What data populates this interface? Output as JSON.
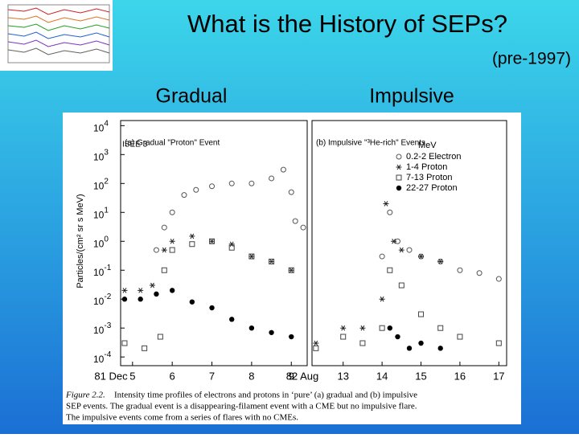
{
  "slide": {
    "title": "What is the History of SEPs?",
    "subtitle": "(pre-1997)",
    "columns": [
      "Gradual",
      "Impulsive"
    ]
  },
  "figure": {
    "instrument": "ISEE 3",
    "ylabel": "Particles/(cm² sr s MeV)",
    "legend_title": "MeV",
    "caption_label": "Figure 2.2.",
    "caption": [
      "Intensity time profiles of electrons and protons in ‘pure’ (a) gradual and (b) impulsive",
      "SEP events. The gradual event is a disappearing-filament event with a CME but no impulsive flare.",
      "The impulsive events come from a series of flares with no CMEs."
    ]
  },
  "chart_data": [
    {
      "type": "scatter",
      "title": "(a) Gradual \"Proton\" Event",
      "x_prefix": "81 Dec",
      "log_y": true,
      "xlim": [
        4.7,
        9.4
      ],
      "xticks": [
        5,
        6,
        7,
        8,
        9
      ],
      "ylim": [
        5e-05,
        15000
      ],
      "yticks": [
        {
          "value": 0.0001,
          "label": "10",
          "exponent": "-4"
        },
        {
          "value": 0.001,
          "label": "10",
          "exponent": "-3"
        },
        {
          "value": 0.01,
          "label": "10",
          "exponent": "-2"
        },
        {
          "value": 0.1,
          "label": "10",
          "exponent": "-1"
        },
        {
          "value": 1,
          "label": "10",
          "exponent": "0"
        },
        {
          "value": 10,
          "label": "10",
          "exponent": "1"
        },
        {
          "value": 100,
          "label": "10",
          "exponent": "2"
        },
        {
          "value": 1000,
          "label": "10",
          "exponent": "3"
        },
        {
          "value": 10000,
          "label": "10",
          "exponent": "4"
        }
      ],
      "series": [
        {
          "marker": "open-circle",
          "color": "#555555",
          "x": [
            5.6,
            5.8,
            6.0,
            6.3,
            6.6,
            7.0,
            7.5,
            8.0,
            8.5,
            8.8,
            9.0,
            9.1,
            9.3
          ],
          "values": [
            0.5,
            3,
            10,
            40,
            60,
            80,
            100,
            100,
            150,
            300,
            50,
            5,
            3
          ]
        },
        {
          "marker": "asterisk",
          "color": "#222222",
          "x": [
            4.8,
            5.2,
            5.5,
            5.8,
            6.0,
            6.5,
            7.0,
            7.5,
            8.0,
            8.5,
            9.0
          ],
          "values": [
            0.02,
            0.02,
            0.03,
            0.5,
            1,
            1.5,
            1,
            0.8,
            0.3,
            0.2,
            0.1
          ]
        },
        {
          "marker": "open-square",
          "color": "#444444",
          "x": [
            4.8,
            5.3,
            5.7,
            5.8,
            6.0,
            6.5,
            7.0,
            7.5,
            8.0,
            8.5,
            9.0
          ],
          "values": [
            0.0003,
            0.0002,
            0.0005,
            0.1,
            0.5,
            0.8,
            1,
            0.6,
            0.3,
            0.2,
            0.1
          ]
        },
        {
          "marker": "filled-circle",
          "color": "#000000",
          "x": [
            4.8,
            5.2,
            5.6,
            6.0,
            6.5,
            7.0,
            7.5,
            8.0,
            8.5,
            9.0
          ],
          "values": [
            0.01,
            0.01,
            0.015,
            0.02,
            0.008,
            0.005,
            0.002,
            0.001,
            0.0007,
            0.0005
          ]
        }
      ]
    },
    {
      "type": "scatter",
      "title": "(b) Impulsive \"³He-rich\" Events",
      "x_prefix": "82 Aug",
      "log_y": true,
      "xlim": [
        12.2,
        17.2
      ],
      "xticks": [
        13,
        14,
        15,
        16,
        17
      ],
      "ylim": [
        5e-05,
        15000
      ],
      "series": [
        {
          "name": "0.2-2 Electron",
          "marker": "open-circle",
          "color": "#555555",
          "x": [
            14.0,
            14.2,
            14.4,
            14.7,
            15.0,
            15.5,
            16.0,
            16.5,
            17.0
          ],
          "values": [
            0.3,
            10,
            1,
            0.5,
            0.3,
            0.2,
            0.1,
            0.08,
            0.05
          ]
        },
        {
          "name": "1-4 Proton",
          "marker": "asterisk",
          "color": "#222222",
          "x": [
            12.3,
            13.0,
            13.5,
            14.0,
            14.1,
            14.3,
            14.5,
            15.0,
            15.5
          ],
          "values": [
            0.0003,
            0.001,
            0.001,
            0.01,
            20,
            1,
            0.5,
            0.3,
            0.2
          ]
        },
        {
          "name": "7-13 Proton",
          "marker": "open-square",
          "color": "#444444",
          "x": [
            12.3,
            13.0,
            13.5,
            14.0,
            14.2,
            14.5,
            15.0,
            15.5,
            16.0,
            17.0
          ],
          "values": [
            0.0002,
            0.0005,
            0.0003,
            0.001,
            0.1,
            0.03,
            0.003,
            0.001,
            0.0005,
            0.0003
          ]
        },
        {
          "name": "22-27 Proton",
          "marker": "filled-circle",
          "color": "#000000",
          "x": [
            14.2,
            14.4,
            14.7,
            15.0,
            15.5
          ],
          "values": [
            0.001,
            0.0005,
            0.0002,
            0.0003,
            0.0002
          ]
        }
      ]
    }
  ]
}
